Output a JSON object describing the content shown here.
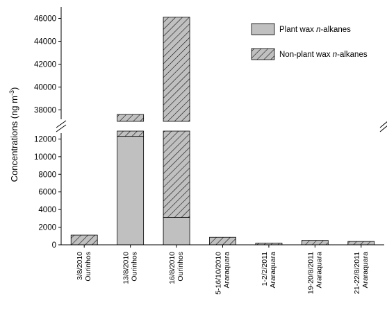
{
  "chart_data": {
    "type": "bar",
    "stacked": true,
    "broken_y_axis": true,
    "ylabel_main": "Concentrations (ng m",
    "ylabel_sup": "-3",
    "ylabel_close": ")",
    "lower_ylim": [
      0,
      12900
    ],
    "upper_ylim": [
      37000,
      47000
    ],
    "lower_ticks": [
      "0",
      "2000",
      "4000",
      "6000",
      "8000",
      "10000",
      "12000"
    ],
    "upper_ticks": [
      "38000",
      "40000",
      "42000",
      "44000",
      "46000"
    ],
    "lower_tick_values": [
      0,
      2000,
      4000,
      6000,
      8000,
      10000,
      12000
    ],
    "upper_tick_values": [
      38000,
      40000,
      42000,
      44000,
      46000
    ],
    "categories": [
      {
        "date": "3/8/2010",
        "site": "Ourinhos"
      },
      {
        "date": "13/8/2010",
        "site": "Ourinhos"
      },
      {
        "date": "16/8/2010",
        "site": "Ourinhos"
      },
      {
        "date": "5-16/10/2010",
        "site": "Araraquara"
      },
      {
        "date": "1-2/2/2011",
        "site": "Araraquara"
      },
      {
        "date": "19-20/8/2011",
        "site": "Araraquara"
      },
      {
        "date": "21-22/8/2011",
        "site": "Araraquara"
      }
    ],
    "series": [
      {
        "name_prefix": "Plant wax ",
        "name_italic": "n",
        "name_suffix": "-alkanes",
        "pattern": "solid-gray",
        "values": [
          0,
          12300,
          0,
          0,
          0,
          0,
          0
        ]
      },
      {
        "name_prefix": "Non-plant wax ",
        "name_italic": "n",
        "name_suffix": "-alkanes",
        "pattern": "hatched",
        "values": [
          1100,
          25300,
          46100,
          850,
          200,
          500,
          380
        ]
      }
    ],
    "stack_totals": [
      1100,
      37600,
      46100,
      850,
      200,
      500,
      380
    ],
    "plant_visible_top_bar3": 3100,
    "legend_position": "top-right",
    "colors": {
      "plant": "#c0c0c0",
      "hatch_line": "#000000",
      "hatch_bg": "#c0c0c0"
    }
  }
}
